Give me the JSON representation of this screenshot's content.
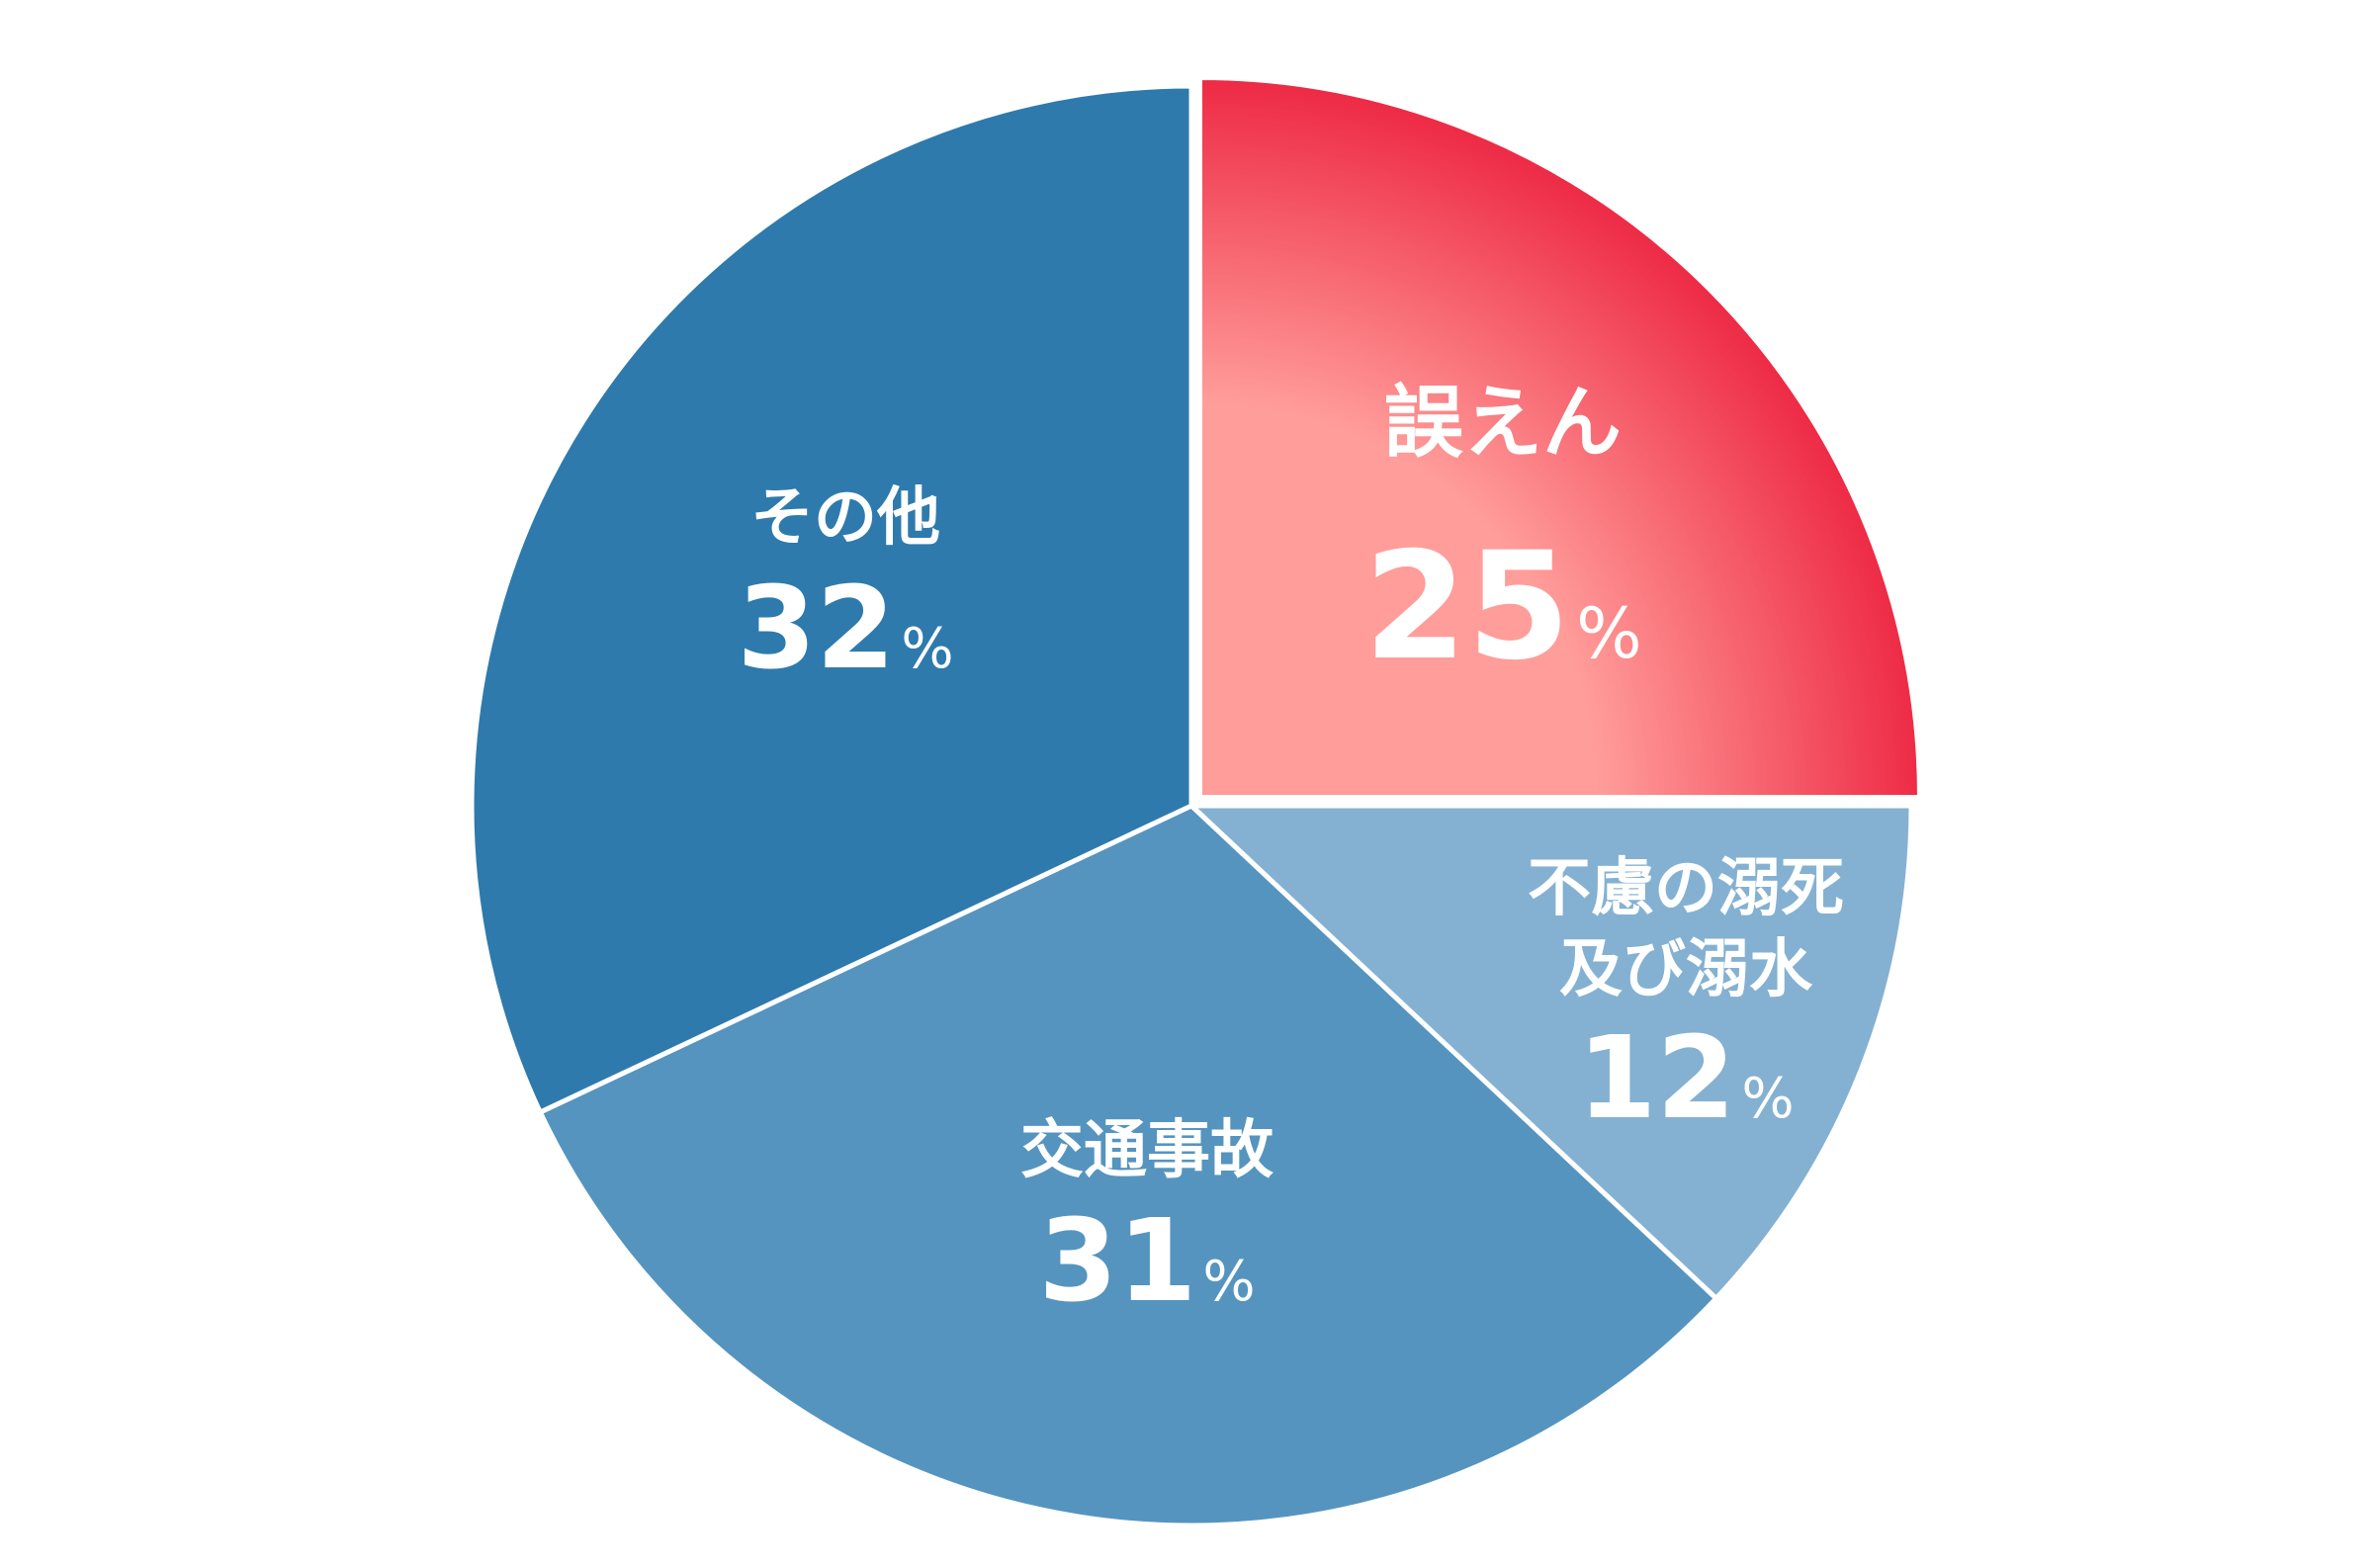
{
  "chart_data": {
    "type": "pie",
    "start_angle_deg": 0,
    "direction": "clockwise",
    "slices": [
      {
        "label_lines": [
          "誤えん"
        ],
        "value": 25,
        "unit": "%",
        "color": "#ee2a45",
        "color_center": "#ff9d9a",
        "gradient": true,
        "exploded": true
      },
      {
        "label_lines": [
          "不慮の溺死",
          "及び溺水"
        ],
        "value": 12,
        "unit": "%",
        "color": "#84b1d1"
      },
      {
        "label_lines": [
          "交通事故"
        ],
        "value": 31,
        "unit": "%",
        "color": "#5594bf"
      },
      {
        "label_lines": [
          "その他"
        ],
        "value": 32,
        "unit": "%",
        "color": "#2e7aad"
      }
    ]
  }
}
